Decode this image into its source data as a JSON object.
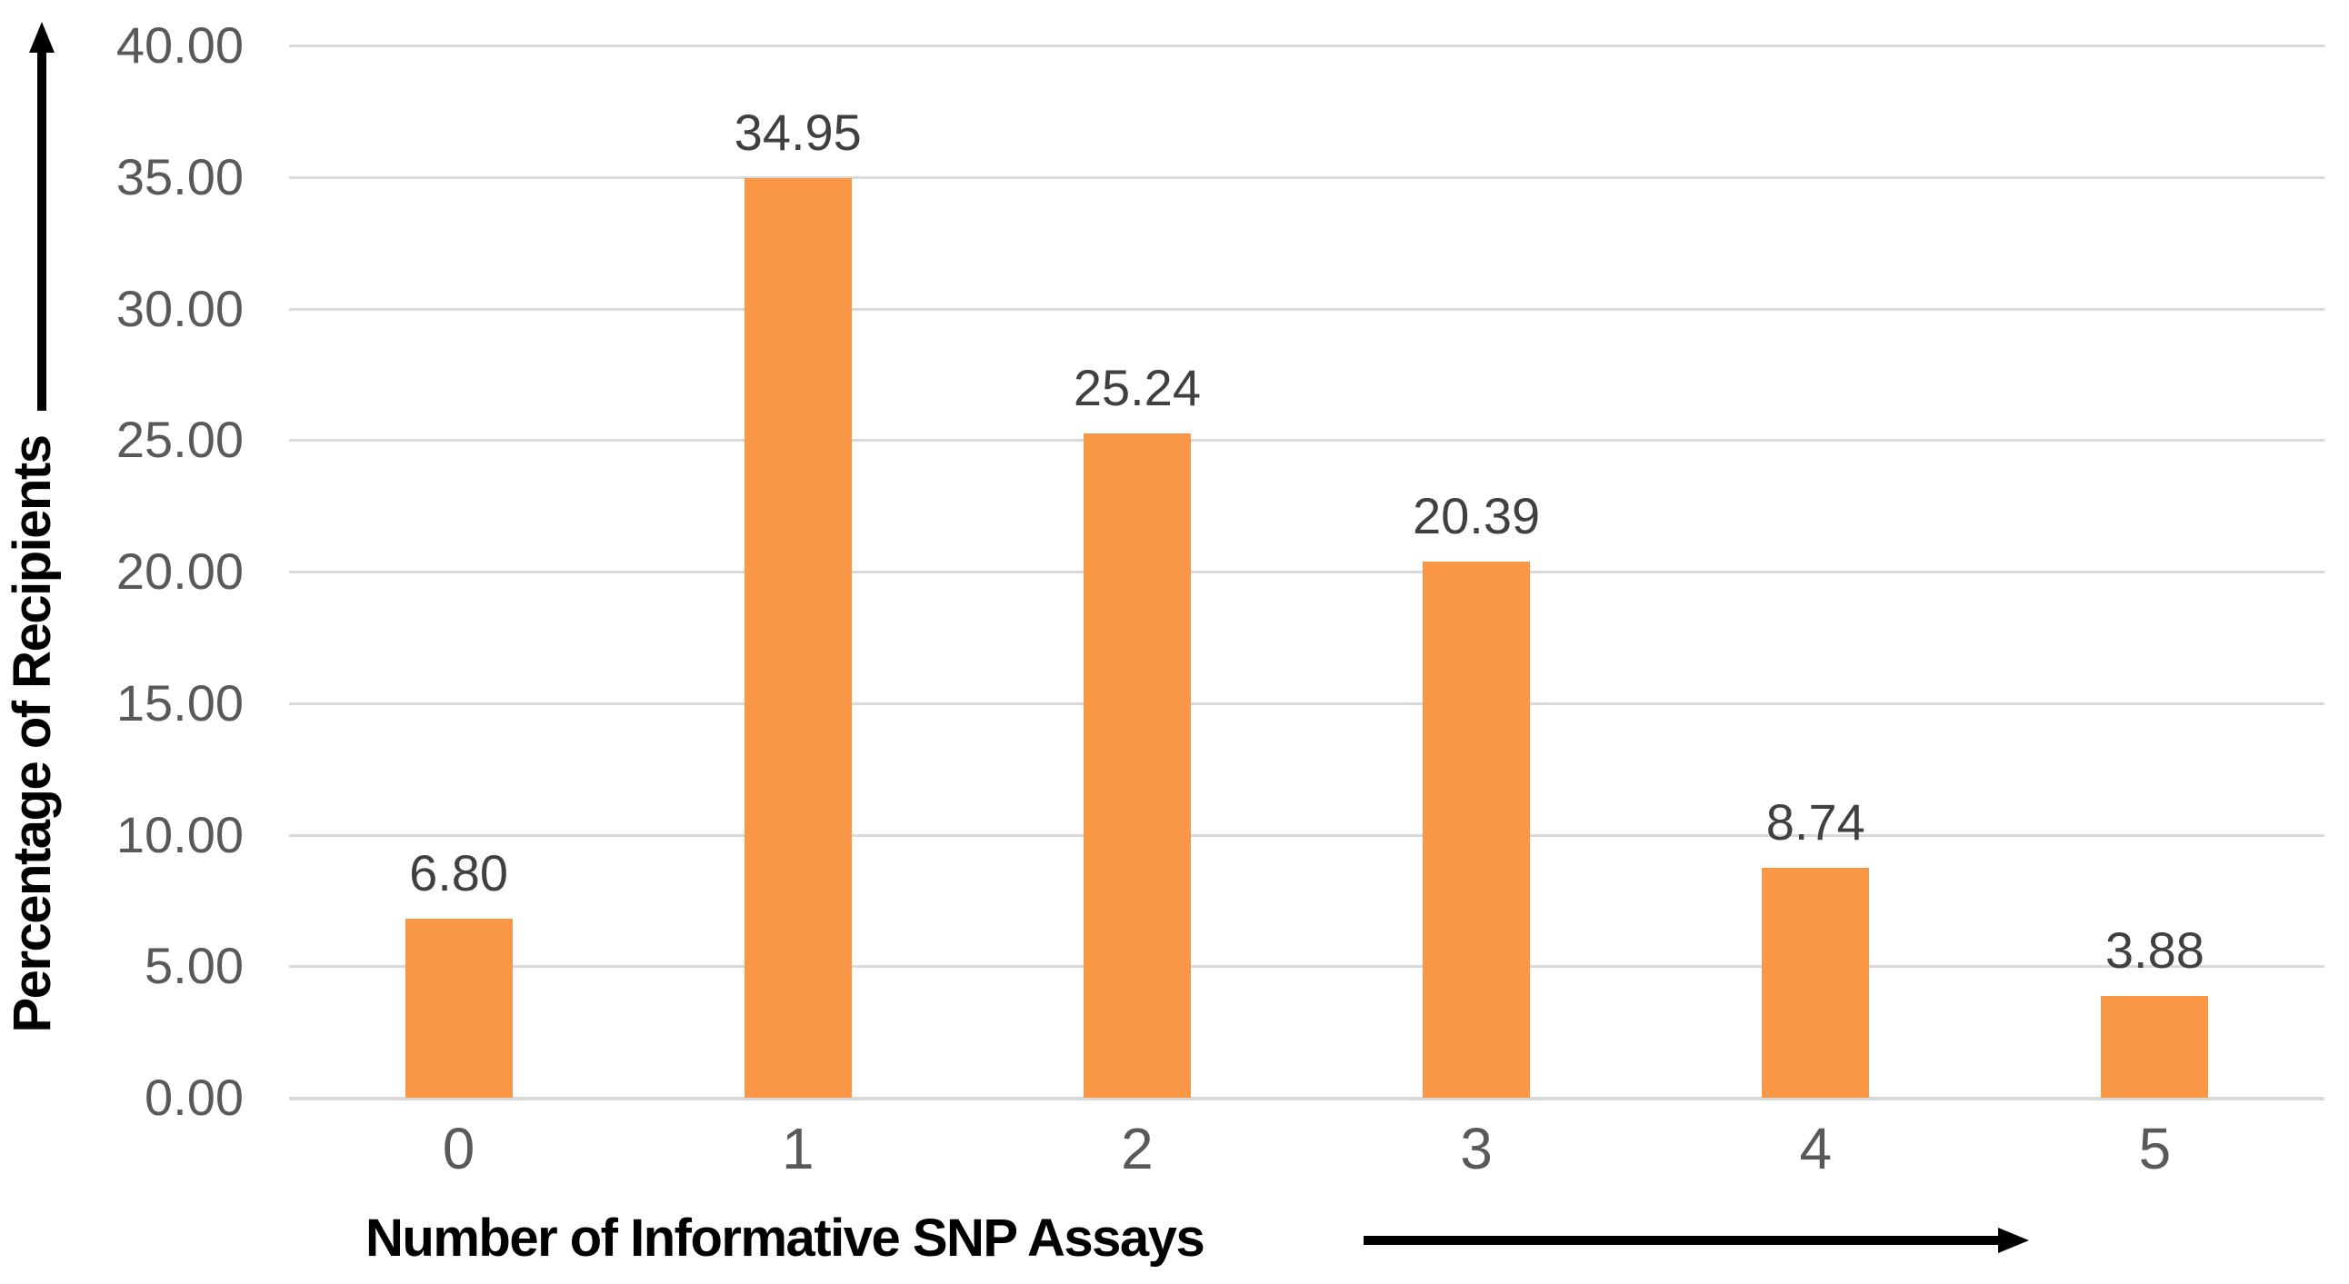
{
  "chart_data": {
    "type": "bar",
    "title": "",
    "categories": [
      "0",
      "1",
      "2",
      "3",
      "4",
      "5"
    ],
    "values": [
      6.8,
      34.95,
      25.24,
      20.39,
      8.74,
      3.88
    ],
    "value_labels": [
      "6.80",
      "34.95",
      "25.24",
      "20.39",
      "8.74",
      "3.88"
    ],
    "xlabel": "Number of Informative SNP Assays",
    "ylabel": "Percentage of Recipients",
    "ylim": [
      0,
      40
    ],
    "yticks": {
      "values": [
        0,
        5,
        10,
        15,
        20,
        25,
        30,
        35,
        40
      ],
      "labels": [
        "0.00",
        "5.00",
        "10.00",
        "15.00",
        "20.00",
        "25.00",
        "30.00",
        "35.00",
        "40.00"
      ]
    },
    "grid": true,
    "legend_position": "none",
    "axis_arrows": true,
    "colors": {
      "bar": "#F99746",
      "gridline": "#D9D9D9",
      "tick_label": "#595959",
      "data_label": "#404040",
      "axis_title": "#000000",
      "arrow": "#000000"
    }
  }
}
